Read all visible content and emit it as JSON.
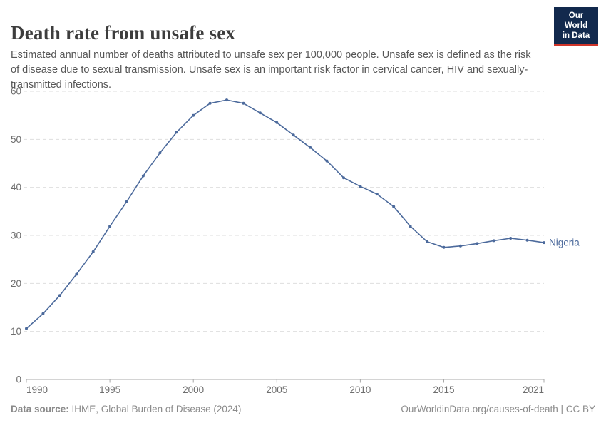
{
  "header": {
    "title": "Death rate from unsafe sex",
    "subtitle": "Estimated annual number of deaths attributed to unsafe sex per 100,000 people. Unsafe sex is defined as the risk of disease due to sexual transmission. Unsafe sex is an important risk factor in cervical cancer, HIV and sexually-transmitted infections.",
    "logo": {
      "line1": "Our World",
      "line2": "in Data"
    }
  },
  "chart_data": {
    "type": "line",
    "title": "Death rate from unsafe sex",
    "xlabel": "",
    "ylabel": "",
    "x": [
      1990,
      1991,
      1992,
      1993,
      1994,
      1995,
      1996,
      1997,
      1998,
      1999,
      2000,
      2001,
      2002,
      2003,
      2004,
      2005,
      2006,
      2007,
      2008,
      2009,
      2010,
      2011,
      2012,
      2013,
      2014,
      2015,
      2016,
      2017,
      2018,
      2019,
      2020,
      2021
    ],
    "series": [
      {
        "name": "Nigeria",
        "color": "#4c6a9c",
        "values": [
          10.6,
          13.7,
          17.5,
          21.9,
          26.6,
          31.9,
          37.0,
          42.4,
          47.2,
          51.5,
          55.0,
          57.5,
          58.2,
          57.5,
          55.5,
          53.5,
          50.9,
          48.3,
          45.5,
          42.0,
          40.2,
          38.6,
          36.0,
          31.9,
          28.7,
          27.5,
          27.8,
          28.3,
          28.9,
          29.4,
          29.0,
          28.5
        ]
      }
    ],
    "ylim": [
      0,
      60
    ],
    "yticks": [
      0,
      10,
      20,
      30,
      40,
      50,
      60
    ],
    "xticks": [
      1990,
      1995,
      2000,
      2005,
      2010,
      2015,
      2021
    ],
    "grid": "horizontal-dashed",
    "legend": "end-of-line-label",
    "end_label": "Nigeria"
  },
  "footer": {
    "data_source_label": "Data source:",
    "data_source_value": " IHME, Global Burden of Disease (2024)",
    "attribution": "OurWorldinData.org/causes-of-death | CC BY"
  },
  "colors": {
    "line": "#4c6a9c",
    "grid": "#dedede",
    "axis": "#a8a8a8",
    "tick_label": "#6e6e6e",
    "logo_bg": "#12294d",
    "logo_accent": "#cf3429"
  }
}
